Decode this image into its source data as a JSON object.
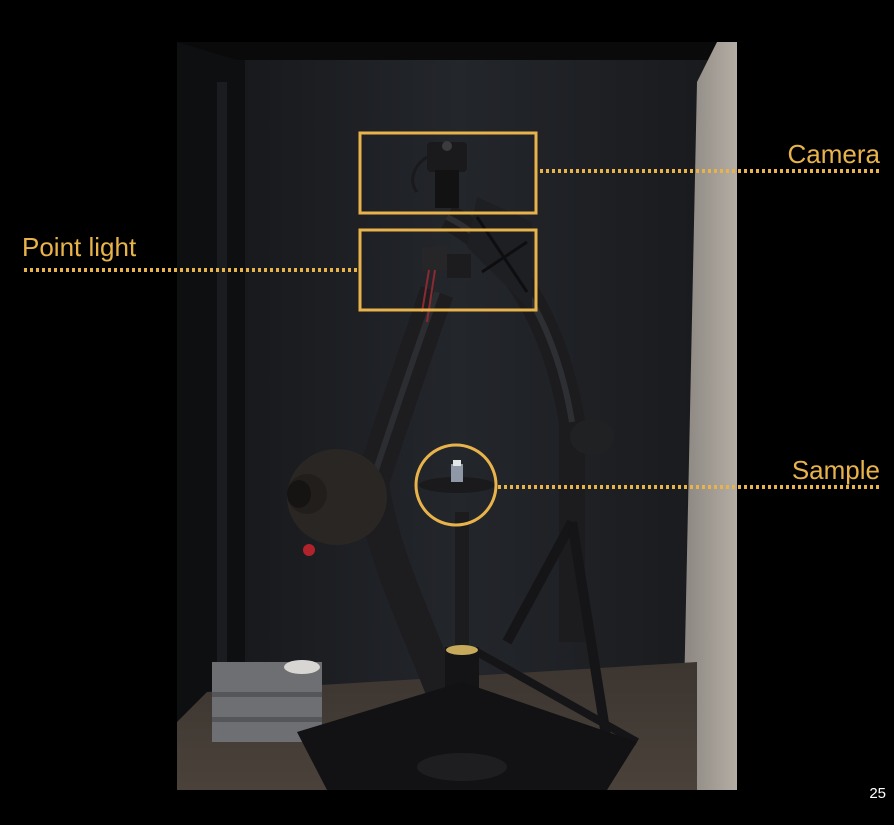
{
  "slide": {
    "labels": {
      "camera": "Camera",
      "point_light": "Point light",
      "sample": "Sample"
    },
    "page_number": "25"
  },
  "colors": {
    "background": "#000000",
    "annotation": "#E8B34A",
    "page_number": "#FFFFFF"
  },
  "photo": {
    "description_icon": "gantry-photo"
  }
}
